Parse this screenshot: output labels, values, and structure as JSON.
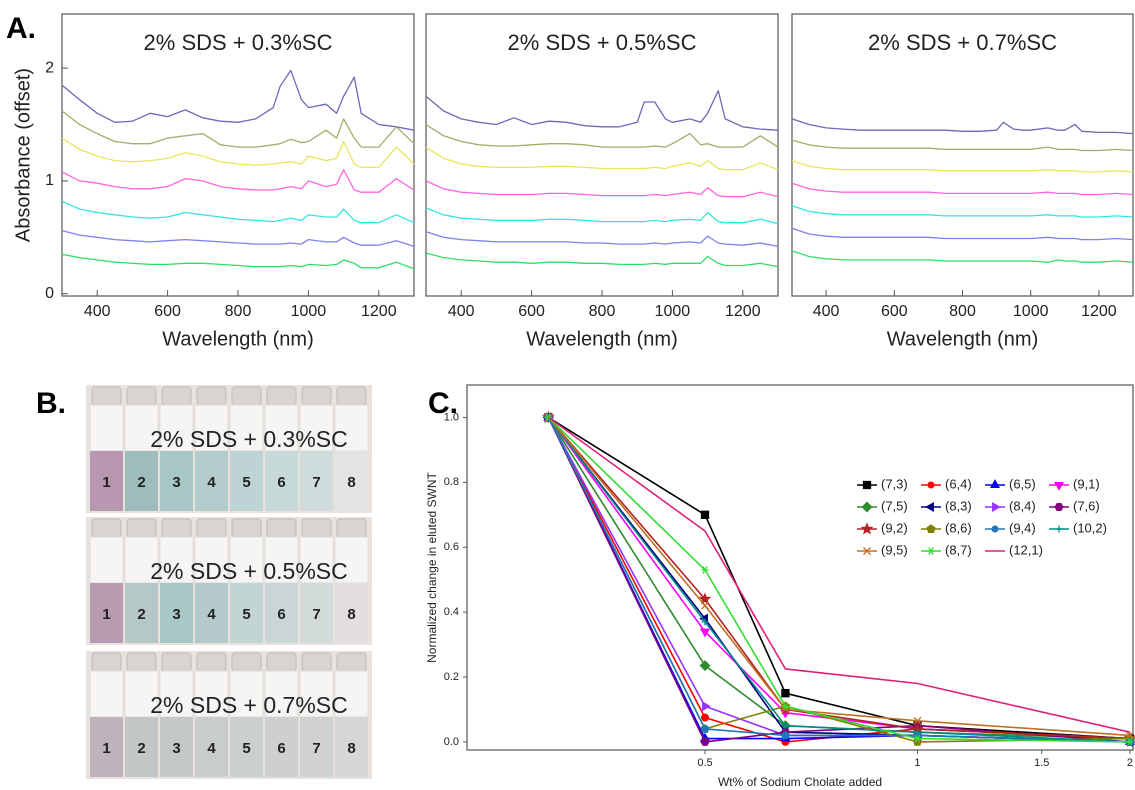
{
  "panel_labels": [
    "A.",
    "B.",
    "C."
  ],
  "photos": [
    {
      "caption": "2% SDS + 0.3%SC",
      "vials": [
        "1",
        "2",
        "3",
        "4",
        "5",
        "6",
        "7",
        "8"
      ]
    },
    {
      "caption": "2% SDS + 0.5%SC",
      "vials": [
        "1",
        "2",
        "3",
        "4",
        "5",
        "6",
        "7",
        "8"
      ]
    },
    {
      "caption": "2% SDS + 0.7%SC",
      "vials": [
        "1",
        "2",
        "3",
        "4",
        "5",
        "6",
        "7",
        "8"
      ]
    }
  ],
  "chart_data": [
    {
      "type": "line",
      "title": "2% SDS + 0.3%SC",
      "xlabel": "Wavelength (nm)",
      "ylabel": "Absorbance (offset)",
      "xlim": [
        300,
        1300
      ],
      "ylim": [
        -0.02,
        2.48
      ],
      "xticks": [
        400,
        600,
        800,
        1000,
        1200
      ],
      "yticks": [
        0,
        1,
        2
      ],
      "x": [
        300,
        350,
        400,
        450,
        500,
        550,
        600,
        650,
        700,
        750,
        800,
        850,
        900,
        920,
        950,
        980,
        1000,
        1050,
        1080,
        1100,
        1130,
        1150,
        1200,
        1250,
        1300
      ],
      "series": [
        {
          "color": "#6b6bb8",
          "values": [
            1.85,
            1.72,
            1.6,
            1.52,
            1.53,
            1.6,
            1.57,
            1.63,
            1.56,
            1.53,
            1.52,
            1.55,
            1.65,
            1.84,
            1.98,
            1.72,
            1.65,
            1.68,
            1.6,
            1.75,
            1.92,
            1.6,
            1.5,
            1.48,
            1.45
          ]
        },
        {
          "color": "#a9a96a",
          "values": [
            1.62,
            1.5,
            1.42,
            1.35,
            1.33,
            1.33,
            1.38,
            1.4,
            1.42,
            1.32,
            1.3,
            1.3,
            1.32,
            1.33,
            1.37,
            1.34,
            1.35,
            1.45,
            1.38,
            1.55,
            1.38,
            1.3,
            1.3,
            1.48,
            1.33
          ]
        },
        {
          "color": "#e6e65c",
          "values": [
            1.38,
            1.28,
            1.22,
            1.18,
            1.17,
            1.18,
            1.2,
            1.25,
            1.22,
            1.17,
            1.15,
            1.14,
            1.15,
            1.16,
            1.17,
            1.15,
            1.22,
            1.18,
            1.2,
            1.35,
            1.15,
            1.12,
            1.12,
            1.3,
            1.15
          ]
        },
        {
          "color": "#ff66dd",
          "values": [
            1.08,
            1.0,
            0.98,
            0.95,
            0.93,
            0.93,
            0.95,
            1.02,
            1.0,
            0.95,
            0.93,
            0.92,
            0.92,
            0.93,
            0.95,
            0.93,
            1.0,
            0.95,
            0.97,
            1.1,
            0.92,
            0.9,
            0.9,
            1.02,
            0.92
          ]
        },
        {
          "color": "#33e5e5",
          "values": [
            0.82,
            0.75,
            0.72,
            0.7,
            0.68,
            0.67,
            0.68,
            0.72,
            0.7,
            0.68,
            0.66,
            0.65,
            0.64,
            0.65,
            0.67,
            0.65,
            0.7,
            0.68,
            0.68,
            0.75,
            0.65,
            0.63,
            0.63,
            0.7,
            0.63
          ]
        },
        {
          "color": "#8080ee",
          "values": [
            0.56,
            0.52,
            0.5,
            0.48,
            0.47,
            0.46,
            0.47,
            0.48,
            0.47,
            0.46,
            0.45,
            0.44,
            0.44,
            0.44,
            0.45,
            0.44,
            0.48,
            0.46,
            0.46,
            0.5,
            0.45,
            0.43,
            0.43,
            0.47,
            0.42
          ]
        },
        {
          "color": "#33dd66",
          "values": [
            0.35,
            0.32,
            0.3,
            0.28,
            0.27,
            0.26,
            0.26,
            0.27,
            0.27,
            0.26,
            0.25,
            0.24,
            0.24,
            0.24,
            0.25,
            0.24,
            0.26,
            0.25,
            0.26,
            0.3,
            0.27,
            0.23,
            0.23,
            0.28,
            0.22
          ]
        }
      ]
    },
    {
      "type": "line",
      "title": "2% SDS + 0.5%SC",
      "xlabel": "Wavelength (nm)",
      "xlim": [
        300,
        1300
      ],
      "ylim": [
        -0.02,
        2.48
      ],
      "xticks": [
        400,
        600,
        800,
        1000,
        1200
      ],
      "x": [
        300,
        350,
        400,
        450,
        500,
        550,
        600,
        650,
        700,
        750,
        800,
        850,
        900,
        920,
        950,
        980,
        1000,
        1050,
        1080,
        1100,
        1130,
        1150,
        1200,
        1250,
        1300
      ],
      "series": [
        {
          "color": "#6b6bb8",
          "values": [
            1.75,
            1.62,
            1.55,
            1.52,
            1.5,
            1.56,
            1.5,
            1.53,
            1.52,
            1.49,
            1.48,
            1.48,
            1.52,
            1.7,
            1.7,
            1.55,
            1.52,
            1.55,
            1.52,
            1.6,
            1.8,
            1.55,
            1.48,
            1.46,
            1.45
          ]
        },
        {
          "color": "#a9a96a",
          "values": [
            1.5,
            1.4,
            1.35,
            1.32,
            1.31,
            1.31,
            1.32,
            1.33,
            1.33,
            1.32,
            1.3,
            1.3,
            1.3,
            1.3,
            1.31,
            1.3,
            1.33,
            1.42,
            1.32,
            1.33,
            1.3,
            1.3,
            1.3,
            1.4,
            1.3
          ]
        },
        {
          "color": "#e6e65c",
          "values": [
            1.3,
            1.2,
            1.15,
            1.13,
            1.12,
            1.12,
            1.12,
            1.13,
            1.13,
            1.12,
            1.11,
            1.11,
            1.11,
            1.11,
            1.12,
            1.11,
            1.13,
            1.16,
            1.13,
            1.18,
            1.11,
            1.1,
            1.1,
            1.16,
            1.1
          ]
        },
        {
          "color": "#ff66dd",
          "values": [
            1.0,
            0.93,
            0.9,
            0.89,
            0.88,
            0.88,
            0.88,
            0.89,
            0.89,
            0.88,
            0.87,
            0.87,
            0.87,
            0.87,
            0.88,
            0.87,
            0.88,
            0.9,
            0.88,
            0.94,
            0.87,
            0.86,
            0.86,
            0.9,
            0.86
          ]
        },
        {
          "color": "#33e5e5",
          "values": [
            0.76,
            0.7,
            0.67,
            0.66,
            0.65,
            0.65,
            0.65,
            0.66,
            0.66,
            0.65,
            0.64,
            0.64,
            0.64,
            0.64,
            0.65,
            0.64,
            0.65,
            0.66,
            0.65,
            0.72,
            0.64,
            0.63,
            0.63,
            0.66,
            0.62
          ]
        },
        {
          "color": "#8080ee",
          "values": [
            0.55,
            0.5,
            0.48,
            0.47,
            0.46,
            0.46,
            0.46,
            0.46,
            0.46,
            0.45,
            0.45,
            0.44,
            0.44,
            0.44,
            0.45,
            0.44,
            0.45,
            0.46,
            0.45,
            0.51,
            0.45,
            0.44,
            0.43,
            0.45,
            0.42
          ]
        },
        {
          "color": "#33dd66",
          "values": [
            0.36,
            0.32,
            0.3,
            0.29,
            0.28,
            0.28,
            0.27,
            0.28,
            0.28,
            0.27,
            0.27,
            0.26,
            0.26,
            0.26,
            0.27,
            0.26,
            0.27,
            0.27,
            0.27,
            0.33,
            0.27,
            0.25,
            0.25,
            0.27,
            0.24
          ]
        }
      ]
    },
    {
      "type": "line",
      "title": "2% SDS + 0.7%SC",
      "xlabel": "Wavelength (nm)",
      "xlim": [
        300,
        1300
      ],
      "ylim": [
        -0.02,
        2.48
      ],
      "xticks": [
        400,
        600,
        800,
        1000,
        1200
      ],
      "x": [
        300,
        350,
        400,
        450,
        500,
        550,
        600,
        650,
        700,
        750,
        800,
        850,
        900,
        920,
        950,
        980,
        1000,
        1050,
        1080,
        1100,
        1130,
        1150,
        1200,
        1250,
        1300
      ],
      "series": [
        {
          "color": "#6b6bb8",
          "values": [
            1.55,
            1.5,
            1.47,
            1.46,
            1.45,
            1.45,
            1.45,
            1.45,
            1.45,
            1.45,
            1.44,
            1.44,
            1.45,
            1.52,
            1.46,
            1.45,
            1.45,
            1.47,
            1.45,
            1.45,
            1.5,
            1.44,
            1.43,
            1.43,
            1.42
          ]
        },
        {
          "color": "#a9a96a",
          "values": [
            1.36,
            1.32,
            1.3,
            1.29,
            1.29,
            1.29,
            1.29,
            1.29,
            1.29,
            1.28,
            1.28,
            1.28,
            1.28,
            1.28,
            1.28,
            1.28,
            1.28,
            1.3,
            1.28,
            1.28,
            1.28,
            1.27,
            1.27,
            1.28,
            1.27
          ]
        },
        {
          "color": "#e6e65c",
          "values": [
            1.18,
            1.13,
            1.11,
            1.1,
            1.1,
            1.1,
            1.1,
            1.1,
            1.1,
            1.09,
            1.09,
            1.09,
            1.09,
            1.09,
            1.09,
            1.09,
            1.09,
            1.1,
            1.09,
            1.09,
            1.09,
            1.08,
            1.08,
            1.09,
            1.08
          ]
        },
        {
          "color": "#ff66dd",
          "values": [
            0.98,
            0.93,
            0.91,
            0.9,
            0.9,
            0.9,
            0.9,
            0.9,
            0.9,
            0.89,
            0.89,
            0.89,
            0.89,
            0.89,
            0.89,
            0.89,
            0.89,
            0.9,
            0.89,
            0.89,
            0.89,
            0.88,
            0.88,
            0.89,
            0.88
          ]
        },
        {
          "color": "#33e5e5",
          "values": [
            0.78,
            0.73,
            0.71,
            0.7,
            0.7,
            0.7,
            0.7,
            0.7,
            0.7,
            0.69,
            0.69,
            0.69,
            0.69,
            0.69,
            0.69,
            0.69,
            0.69,
            0.7,
            0.69,
            0.69,
            0.69,
            0.68,
            0.68,
            0.69,
            0.68
          ]
        },
        {
          "color": "#8080ee",
          "values": [
            0.58,
            0.53,
            0.51,
            0.5,
            0.5,
            0.5,
            0.5,
            0.5,
            0.5,
            0.49,
            0.49,
            0.49,
            0.49,
            0.49,
            0.49,
            0.49,
            0.49,
            0.5,
            0.49,
            0.49,
            0.49,
            0.48,
            0.48,
            0.49,
            0.48
          ]
        },
        {
          "color": "#33dd66",
          "values": [
            0.38,
            0.33,
            0.31,
            0.3,
            0.3,
            0.3,
            0.3,
            0.3,
            0.3,
            0.29,
            0.29,
            0.29,
            0.29,
            0.29,
            0.29,
            0.29,
            0.29,
            0.28,
            0.3,
            0.29,
            0.29,
            0.28,
            0.28,
            0.29,
            0.28
          ]
        }
      ]
    },
    {
      "type": "line",
      "xlabel": "Wt% of Sodium Cholate added",
      "ylabel": "Normalized change in eluted SWNT",
      "xscale": "log",
      "xlim": [
        0.23,
        2.02
      ],
      "ylim": [
        -0.025,
        1.1
      ],
      "xticks": [
        0.5,
        1,
        1.5,
        2
      ],
      "yticks": [
        {
          "value": 0,
          "label": "0.0"
        },
        {
          "value": 0.2,
          "label": "0.2"
        },
        {
          "value": 0.4,
          "label": "0.4"
        },
        {
          "value": 0.6,
          "label": "0.6"
        },
        {
          "value": 0.8,
          "label": "0.8"
        },
        {
          "value": 1,
          "label": "1.0"
        }
      ],
      "legend": "upper right",
      "x": [
        0.3,
        0.5,
        0.65,
        1,
        2
      ],
      "series": [
        {
          "name": "(7,3)",
          "color": "#000000",
          "marker": "square",
          "values": [
            1,
            0.7,
            0.15,
            0.05,
            0.01
          ]
        },
        {
          "name": "(6,4)",
          "color": "#ff0000",
          "marker": "circle",
          "values": [
            1,
            0.075,
            0.0,
            0.04,
            0.01
          ]
        },
        {
          "name": "(6,5)",
          "color": "#0000ff",
          "marker": "triangle-up",
          "values": [
            1,
            0.01,
            0.01,
            0.02,
            0.0
          ]
        },
        {
          "name": "(9,1)",
          "color": "#ff00ff",
          "marker": "triangle-down",
          "values": [
            1,
            0.34,
            0.09,
            0.04,
            0.01
          ]
        },
        {
          "name": "(7,5)",
          "color": "#2e8b2e",
          "marker": "diamond",
          "values": [
            1,
            0.235,
            0.05,
            0.03,
            0.01
          ]
        },
        {
          "name": "(8,3)",
          "color": "#000080",
          "marker": "triangle-left",
          "values": [
            1,
            0.38,
            0.03,
            0.02,
            0.0
          ]
        },
        {
          "name": "(8,4)",
          "color": "#9933ff",
          "marker": "triangle-right",
          "values": [
            1,
            0.11,
            0.02,
            0.02,
            0.0
          ]
        },
        {
          "name": "(7,6)",
          "color": "#800080",
          "marker": "hexagon",
          "values": [
            1,
            0.0,
            0.03,
            0.05,
            0.0
          ]
        },
        {
          "name": "(9,2)",
          "color": "#b22222",
          "marker": "star",
          "values": [
            1,
            0.44,
            0.1,
            0.04,
            0.01
          ]
        },
        {
          "name": "(8,6)",
          "color": "#808000",
          "marker": "pentagon",
          "values": [
            1,
            0.04,
            0.11,
            0.0,
            0.01
          ]
        },
        {
          "name": "(9,4)",
          "color": "#1f77b4",
          "marker": "circle",
          "values": [
            1,
            0.04,
            0.02,
            0.02,
            0.0
          ]
        },
        {
          "name": "(10,2)",
          "color": "#008b8b",
          "marker": "plus",
          "values": [
            1,
            0.37,
            0.05,
            0.03,
            0.0
          ]
        },
        {
          "name": "(9,5)",
          "color": "#c07020",
          "marker": "x",
          "values": [
            1,
            0.42,
            0.1,
            0.065,
            0.02
          ]
        },
        {
          "name": "(8,7)",
          "color": "#33dd33",
          "marker": "asterisk",
          "values": [
            1,
            0.53,
            0.11,
            0.01,
            0.0
          ]
        },
        {
          "name": "(12,1)",
          "color": "#e0207a",
          "values": [
            1,
            0.65,
            0.225,
            0.18,
            0.03
          ]
        }
      ]
    }
  ]
}
